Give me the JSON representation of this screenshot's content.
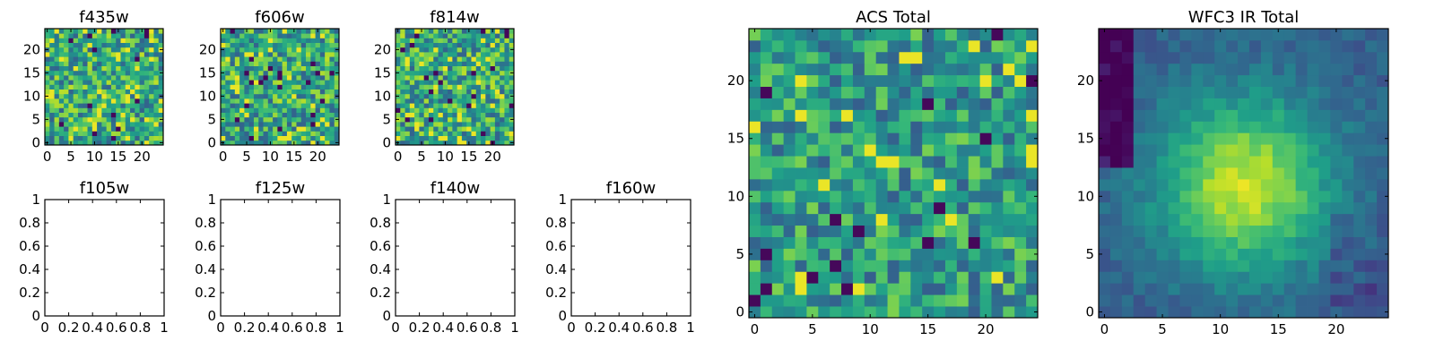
{
  "colormap": "viridis",
  "chart_data": [
    {
      "type": "heatmap",
      "title": "f435w",
      "grid_size": 25,
      "xlim": [
        -0.5,
        24.5
      ],
      "ylim": [
        -0.5,
        24.5
      ],
      "xticks": [
        0,
        5,
        10,
        15,
        20
      ],
      "yticks": [
        0,
        5,
        10,
        15,
        20
      ],
      "pattern": "uniform-noise",
      "seed": 11,
      "has_data": true
    },
    {
      "type": "heatmap",
      "title": "f606w",
      "grid_size": 25,
      "xlim": [
        -0.5,
        24.5
      ],
      "ylim": [
        -0.5,
        24.5
      ],
      "xticks": [
        0,
        5,
        10,
        15,
        20
      ],
      "yticks": [
        0,
        5,
        10,
        15,
        20
      ],
      "pattern": "uniform-noise",
      "seed": 23,
      "has_data": true
    },
    {
      "type": "heatmap",
      "title": "f814w",
      "grid_size": 25,
      "xlim": [
        -0.5,
        24.5
      ],
      "ylim": [
        -0.5,
        24.5
      ],
      "xticks": [
        0,
        5,
        10,
        15,
        20
      ],
      "yticks": [
        0,
        5,
        10,
        15,
        20
      ],
      "pattern": "uniform-noise",
      "seed": 37,
      "has_data": true
    },
    {
      "type": "heatmap",
      "title": "f105w",
      "has_data": false,
      "xlim": [
        0,
        1
      ],
      "ylim": [
        0,
        1
      ],
      "xticks": [
        0.0,
        0.2,
        0.4,
        0.6,
        0.8,
        1.0
      ],
      "yticks": [
        0.0,
        0.2,
        0.4,
        0.6,
        0.8,
        1.0
      ]
    },
    {
      "type": "heatmap",
      "title": "f125w",
      "has_data": false,
      "xlim": [
        0,
        1
      ],
      "ylim": [
        0,
        1
      ],
      "xticks": [
        0.0,
        0.2,
        0.4,
        0.6,
        0.8,
        1.0
      ],
      "yticks": [
        0.0,
        0.2,
        0.4,
        0.6,
        0.8,
        1.0
      ]
    },
    {
      "type": "heatmap",
      "title": "f140w",
      "has_data": false,
      "xlim": [
        0,
        1
      ],
      "ylim": [
        0,
        1
      ],
      "xticks": [
        0.0,
        0.2,
        0.4,
        0.6,
        0.8,
        1.0
      ],
      "yticks": [
        0.0,
        0.2,
        0.4,
        0.6,
        0.8,
        1.0
      ]
    },
    {
      "type": "heatmap",
      "title": "f160w",
      "has_data": false,
      "xlim": [
        0,
        1
      ],
      "ylim": [
        0,
        1
      ],
      "xticks": [
        0.0,
        0.2,
        0.4,
        0.6,
        0.8,
        1.0
      ],
      "yticks": [
        0.0,
        0.2,
        0.4,
        0.6,
        0.8,
        1.0
      ]
    },
    {
      "type": "heatmap",
      "title": "ACS Total",
      "grid_size": 25,
      "xlim": [
        -0.5,
        24.5
      ],
      "ylim": [
        -0.5,
        24.5
      ],
      "xticks": [
        0,
        5,
        10,
        15,
        20
      ],
      "yticks": [
        0,
        5,
        10,
        15,
        20
      ],
      "pattern": "noise-with-dark-outliers",
      "seed": 51,
      "has_data": true
    },
    {
      "type": "heatmap",
      "title": "WFC3 IR Total",
      "grid_size": 25,
      "xlim": [
        -0.5,
        24.5
      ],
      "ylim": [
        -0.5,
        24.5
      ],
      "xticks": [
        0,
        5,
        10,
        15,
        20
      ],
      "yticks": [
        0,
        5,
        10,
        15,
        20
      ],
      "pattern": "central-source",
      "source_center": [
        12,
        11
      ],
      "seed": 67,
      "has_data": true
    }
  ]
}
